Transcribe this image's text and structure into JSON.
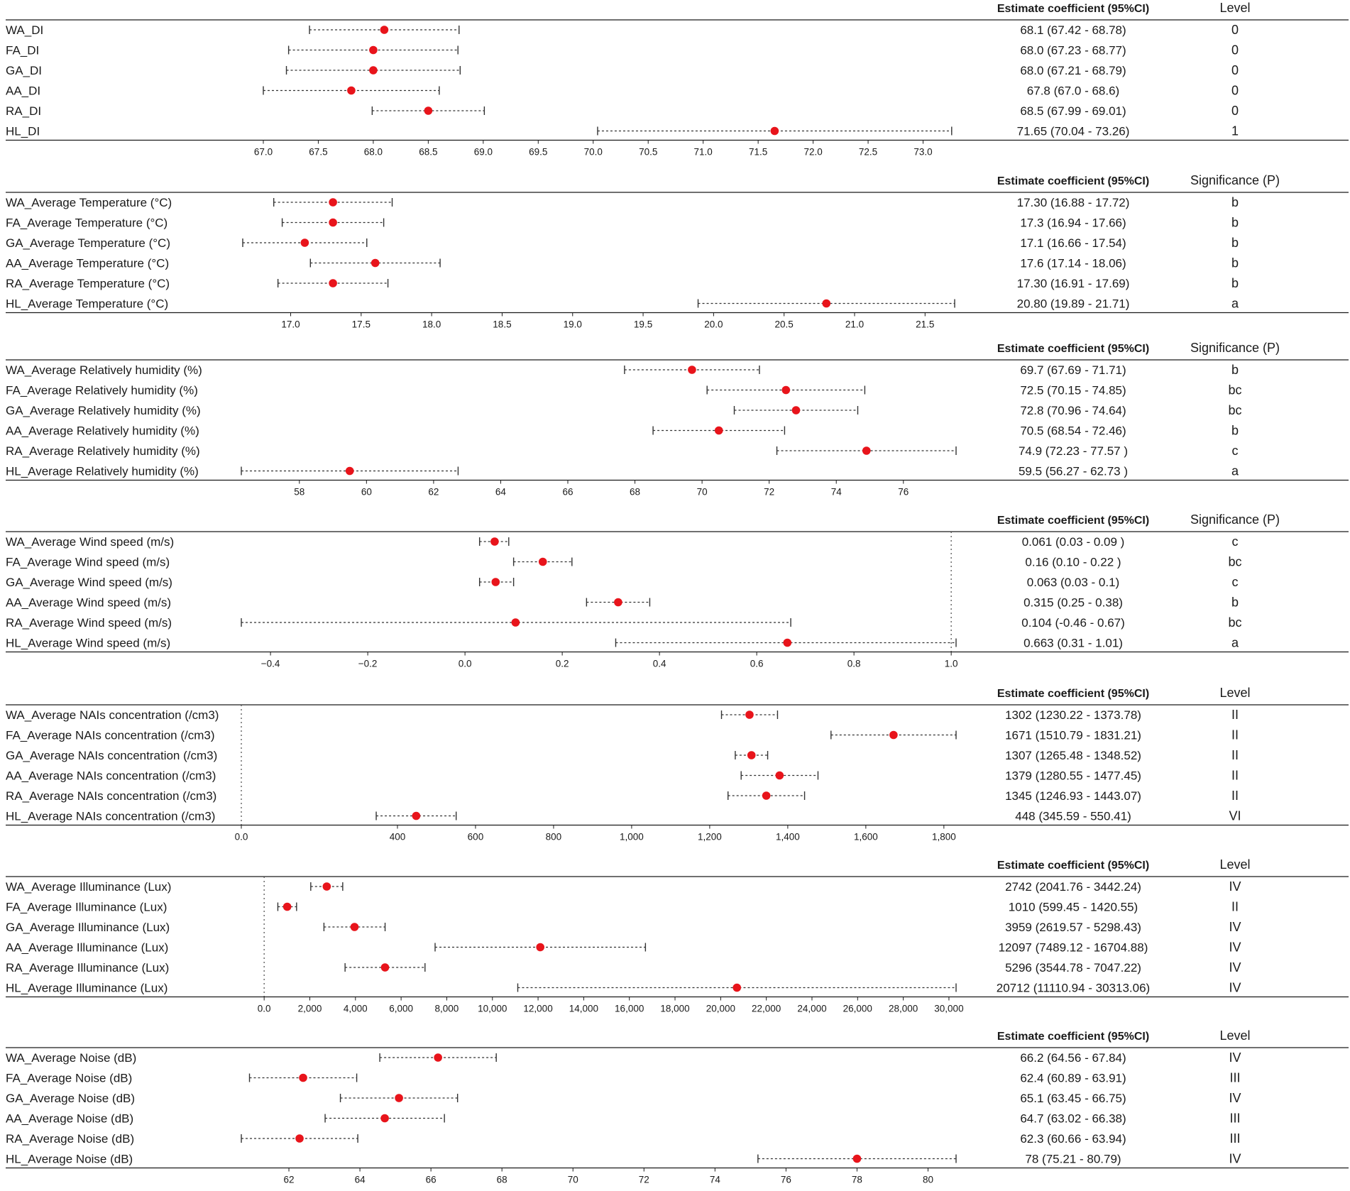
{
  "chart_data": [
    {
      "type": "forest",
      "title": "DI",
      "col_estimate_header": "Estimate coefficient (95%CI)",
      "col_sig_header": "Level",
      "xlim": [
        66.8,
        73.3
      ],
      "ticks": [
        67.0,
        67.5,
        68.0,
        68.5,
        69.0,
        69.5,
        70.0,
        70.5,
        71.0,
        71.5,
        72.0,
        72.5,
        73.0
      ],
      "tick_labels": [
        "67.0",
        "67.5",
        "68.0",
        "68.5",
        "69.0",
        "69.5",
        "70.0",
        "70.5",
        "71.0",
        "71.5",
        "72.0",
        "72.5",
        "73.0"
      ],
      "reference_line": null,
      "rows": [
        {
          "label": "WA_DI",
          "estimate": 68.1,
          "lower": 67.42,
          "upper": 68.78,
          "ci_text": "68.1 (67.42 - 68.78)",
          "sig": "0"
        },
        {
          "label": "FA_DI",
          "estimate": 68.0,
          "lower": 67.23,
          "upper": 68.77,
          "ci_text": "68.0 (67.23 - 68.77)",
          "sig": "0"
        },
        {
          "label": "GA_DI",
          "estimate": 68.0,
          "lower": 67.21,
          "upper": 68.79,
          "ci_text": "68.0 (67.21 - 68.79)",
          "sig": "0"
        },
        {
          "label": "AA_DI",
          "estimate": 67.8,
          "lower": 67.0,
          "upper": 68.6,
          "ci_text": "67.8 (67.0 - 68.6)",
          "sig": "0"
        },
        {
          "label": "RA_DI",
          "estimate": 68.5,
          "lower": 67.99,
          "upper": 69.01,
          "ci_text": "68.5 (67.99 - 69.01)",
          "sig": "0"
        },
        {
          "label": "HL_DI",
          "estimate": 71.65,
          "lower": 70.04,
          "upper": 73.26,
          "ci_text": "71.65 (70.04 - 73.26)",
          "sig": "1"
        }
      ]
    },
    {
      "type": "forest",
      "title": "Average Temperature",
      "col_estimate_header": "Estimate coefficient (95%CI)",
      "col_sig_header": "Significance (P)",
      "xlim": [
        16.65,
        21.72
      ],
      "ticks": [
        17.0,
        17.5,
        18.0,
        18.5,
        19.0,
        19.5,
        20.0,
        20.5,
        21.0,
        21.5
      ],
      "tick_labels": [
        "17.0",
        "17.5",
        "18.0",
        "18.5",
        "19.0",
        "19.5",
        "20.0",
        "20.5",
        "21.0",
        "21.5"
      ],
      "reference_line": null,
      "rows": [
        {
          "label": "WA_Average Temperature (°C)",
          "estimate": 17.3,
          "lower": 16.88,
          "upper": 17.72,
          "ci_text": "17.30 (16.88 - 17.72)",
          "sig": "b"
        },
        {
          "label": "FA_Average Temperature (°C)",
          "estimate": 17.3,
          "lower": 16.94,
          "upper": 17.66,
          "ci_text": "17.3 (16.94 - 17.66)",
          "sig": "b"
        },
        {
          "label": "GA_Average Temperature (°C)",
          "estimate": 17.1,
          "lower": 16.66,
          "upper": 17.54,
          "ci_text": "17.1 (16.66 - 17.54)",
          "sig": "b"
        },
        {
          "label": "AA_Average Temperature (°C)",
          "estimate": 17.6,
          "lower": 17.14,
          "upper": 18.06,
          "ci_text": "17.6 (17.14 - 18.06)",
          "sig": "b"
        },
        {
          "label": "RA_Average Temperature (°C)",
          "estimate": 17.3,
          "lower": 16.91,
          "upper": 17.69,
          "ci_text": "17.30 (16.91 - 17.69)",
          "sig": "b"
        },
        {
          "label": "HL_Average Temperature (°C)",
          "estimate": 20.8,
          "lower": 19.89,
          "upper": 21.71,
          "ci_text": "20.80 (19.89 - 21.71)",
          "sig": "a"
        }
      ]
    },
    {
      "type": "forest",
      "title": "Average Relatively humidity",
      "col_estimate_header": "Estimate coefficient (95%CI)",
      "col_sig_header": "Significance (P)",
      "xlim": [
        56.27,
        77.57
      ],
      "ticks": [
        58,
        60,
        62,
        64,
        66,
        68,
        70,
        72,
        74,
        76
      ],
      "tick_labels": [
        "58",
        "60",
        "62",
        "64",
        "66",
        "68",
        "70",
        "72",
        "74",
        "76"
      ],
      "reference_line": null,
      "rows": [
        {
          "label": "WA_Average Relatively humidity (%)",
          "estimate": 69.7,
          "lower": 67.69,
          "upper": 71.71,
          "ci_text": "69.7 (67.69 - 71.71)",
          "sig": "b"
        },
        {
          "label": "FA_Average Relatively humidity (%)",
          "estimate": 72.5,
          "lower": 70.15,
          "upper": 74.85,
          "ci_text": "72.5 (70.15 - 74.85)",
          "sig": "bc"
        },
        {
          "label": "GA_Average Relatively humidity (%)",
          "estimate": 72.8,
          "lower": 70.96,
          "upper": 74.64,
          "ci_text": "72.8 (70.96 - 74.64)",
          "sig": "bc"
        },
        {
          "label": "AA_Average Relatively humidity (%)",
          "estimate": 70.5,
          "lower": 68.54,
          "upper": 72.46,
          "ci_text": "70.5 (68.54 - 72.46)",
          "sig": "b"
        },
        {
          "label": "RA_Average Relatively humidity (%)",
          "estimate": 74.9,
          "lower": 72.23,
          "upper": 77.57,
          "ci_text": "74.9 (72.23 - 77.57 )",
          "sig": "c"
        },
        {
          "label": "HL_Average Relatively humidity (%)",
          "estimate": 59.5,
          "lower": 56.27,
          "upper": 62.73,
          "ci_text": "59.5 (56.27 - 62.73 )",
          "sig": "a"
        }
      ]
    },
    {
      "type": "forest",
      "title": "Average Wind speed",
      "col_estimate_header": "Estimate coefficient (95%CI)",
      "col_sig_header": "Significance (P)",
      "xlim": [
        -0.46,
        1.01
      ],
      "ticks": [
        -0.4,
        -0.2,
        0.0,
        0.2,
        0.4,
        0.6,
        0.8,
        1.0
      ],
      "tick_labels": [
        "−0.4",
        "−0.2",
        "0.0",
        "0.2",
        "0.4",
        "0.6",
        "0.8",
        "1.0"
      ],
      "reference_line": 1.0,
      "rows": [
        {
          "label": "WA_Average Wind speed (m/s)",
          "estimate": 0.061,
          "lower": 0.03,
          "upper": 0.09,
          "ci_text": "0.061 (0.03 - 0.09 )",
          "sig": "c"
        },
        {
          "label": "FA_Average Wind speed (m/s)",
          "estimate": 0.16,
          "lower": 0.1,
          "upper": 0.22,
          "ci_text": "0.16 (0.10 - 0.22 )",
          "sig": "bc"
        },
        {
          "label": "GA_Average Wind speed (m/s)",
          "estimate": 0.063,
          "lower": 0.03,
          "upper": 0.1,
          "ci_text": "0.063 (0.03 - 0.1)",
          "sig": "c"
        },
        {
          "label": "AA_Average Wind speed (m/s)",
          "estimate": 0.315,
          "lower": 0.25,
          "upper": 0.38,
          "ci_text": "0.315 (0.25 - 0.38)",
          "sig": "b"
        },
        {
          "label": "RA_Average Wind speed (m/s)",
          "estimate": 0.104,
          "lower": -0.46,
          "upper": 0.67,
          "ci_text": "0.104 (-0.46 - 0.67)",
          "sig": "bc"
        },
        {
          "label": "HL_Average Wind speed (m/s)",
          "estimate": 0.663,
          "lower": 0.31,
          "upper": 1.01,
          "ci_text": "0.663 (0.31 - 1.01)",
          "sig": "a"
        }
      ]
    },
    {
      "type": "forest",
      "title": "Average NAIs concentration",
      "col_estimate_header": "Estimate coefficient (95%CI)",
      "col_sig_header": "Level",
      "xlim": [
        0,
        1831.21
      ],
      "ticks": [
        0,
        400,
        600,
        800,
        1000,
        1200,
        1400,
        1600,
        1800
      ],
      "tick_labels": [
        "0.0",
        "400",
        "600",
        "800",
        "1,000",
        "1,200",
        "1,400",
        "1,600",
        "1,800"
      ],
      "reference_line": 0,
      "axis_break_after": 0,
      "rows": [
        {
          "label": "WA_Average NAIs concentration (/cm3)",
          "estimate": 1302,
          "lower": 1230.22,
          "upper": 1373.78,
          "ci_text": "1302 (1230.22 - 1373.78)",
          "sig": "II"
        },
        {
          "label": "FA_Average NAIs concentration (/cm3)",
          "estimate": 1671,
          "lower": 1510.79,
          "upper": 1831.21,
          "ci_text": "1671 (1510.79 - 1831.21)",
          "sig": "II"
        },
        {
          "label": "GA_Average NAIs concentration (/cm3)",
          "estimate": 1307,
          "lower": 1265.48,
          "upper": 1348.52,
          "ci_text": "1307 (1265.48 - 1348.52)",
          "sig": "II"
        },
        {
          "label": "AA_Average NAIs concentration (/cm3)",
          "estimate": 1379,
          "lower": 1280.55,
          "upper": 1477.45,
          "ci_text": "1379 (1280.55 - 1477.45)",
          "sig": "II"
        },
        {
          "label": "RA_Average NAIs concentration (/cm3)",
          "estimate": 1345,
          "lower": 1246.93,
          "upper": 1443.07,
          "ci_text": "1345 (1246.93 - 1443.07)",
          "sig": "II"
        },
        {
          "label": "HL_Average NAIs concentration (/cm3)",
          "estimate": 448,
          "lower": 345.59,
          "upper": 550.41,
          "ci_text": "448 (345.59 - 550.41)",
          "sig": "VI"
        }
      ]
    },
    {
      "type": "forest",
      "title": "Average Illuminance",
      "col_estimate_header": "Estimate coefficient (95%CI)",
      "col_sig_header": "Level",
      "xlim": [
        -1000,
        30313.06
      ],
      "ticks": [
        0,
        2000,
        4000,
        6000,
        8000,
        10000,
        12000,
        14000,
        16000,
        18000,
        20000,
        22000,
        24000,
        26000,
        28000,
        30000
      ],
      "tick_labels": [
        "0.0",
        "2,000",
        "4,000",
        "6,000",
        "8,000",
        "10,000",
        "12,000",
        "14,000",
        "16,000",
        "18,000",
        "20,000",
        "22,000",
        "24,000",
        "26,000",
        "28,000",
        "30,000"
      ],
      "reference_line": 0,
      "rows": [
        {
          "label": "WA_Average Illuminance (Lux)",
          "estimate": 2742,
          "lower": 2041.76,
          "upper": 3442.24,
          "ci_text": "2742 (2041.76 - 3442.24)",
          "sig": "IV"
        },
        {
          "label": "FA_Average Illuminance (Lux)",
          "estimate": 1010,
          "lower": 599.45,
          "upper": 1420.55,
          "ci_text": "1010 (599.45 - 1420.55)",
          "sig": "II"
        },
        {
          "label": "GA_Average Illuminance (Lux)",
          "estimate": 3959,
          "lower": 2619.57,
          "upper": 5298.43,
          "ci_text": "3959 (2619.57 - 5298.43)",
          "sig": "IV"
        },
        {
          "label": "AA_Average Illuminance (Lux)",
          "estimate": 12097,
          "lower": 7489.12,
          "upper": 16704.88,
          "ci_text": "12097 (7489.12 - 16704.88)",
          "sig": "IV"
        },
        {
          "label": "RA_Average Illuminance (Lux)",
          "estimate": 5296,
          "lower": 3544.78,
          "upper": 7047.22,
          "ci_text": "5296 (3544.78 - 7047.22)",
          "sig": "IV"
        },
        {
          "label": "HL_Average Illuminance (Lux)",
          "estimate": 20712,
          "lower": 11110.94,
          "upper": 30313.06,
          "ci_text": "20712 (11110.94 - 30313.06)",
          "sig": "IV"
        }
      ]
    },
    {
      "type": "forest",
      "title": "Average Noise",
      "col_estimate_header": "Estimate coefficient (95%CI)",
      "col_sig_header": "Level",
      "xlim": [
        60.66,
        80.79
      ],
      "ticks": [
        62,
        64,
        66,
        68,
        70,
        72,
        74,
        76,
        78,
        80
      ],
      "tick_labels": [
        "62",
        "64",
        "66",
        "68",
        "70",
        "72",
        "74",
        "76",
        "78",
        "80"
      ],
      "reference_line": null,
      "rows": [
        {
          "label": "WA_Average Noise (dB)",
          "estimate": 66.2,
          "lower": 64.56,
          "upper": 67.84,
          "ci_text": "66.2 (64.56 - 67.84)",
          "sig": "IV"
        },
        {
          "label": "FA_Average Noise (dB)",
          "estimate": 62.4,
          "lower": 60.89,
          "upper": 63.91,
          "ci_text": "62.4 (60.89 - 63.91)",
          "sig": "III"
        },
        {
          "label": "GA_Average Noise (dB)",
          "estimate": 65.1,
          "lower": 63.45,
          "upper": 66.75,
          "ci_text": "65.1 (63.45 - 66.75)",
          "sig": "IV"
        },
        {
          "label": "AA_Average Noise (dB)",
          "estimate": 64.7,
          "lower": 63.02,
          "upper": 66.38,
          "ci_text": "64.7 (63.02 - 66.38)",
          "sig": "III"
        },
        {
          "label": "RA_Average Noise (dB)",
          "estimate": 62.3,
          "lower": 60.66,
          "upper": 63.94,
          "ci_text": "62.3 (60.66 - 63.94)",
          "sig": "III"
        },
        {
          "label": "HL_Average Noise (dB)",
          "estimate": 78,
          "lower": 75.21,
          "upper": 80.79,
          "ci_text": "78 (75.21 - 80.79)",
          "sig": "IV"
        }
      ]
    }
  ]
}
